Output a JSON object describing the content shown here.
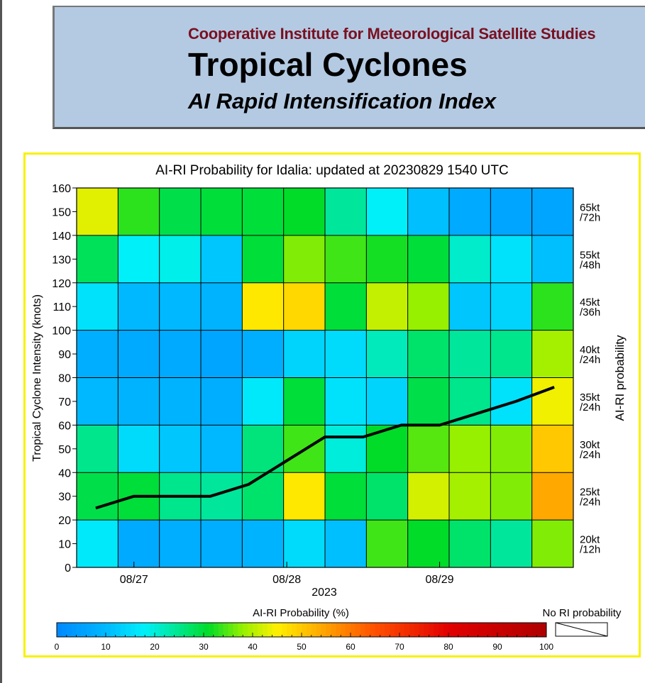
{
  "header": {
    "institute": "Cooperative Institute for Meteorological Satellite Studies",
    "title": "Tropical Cyclones",
    "subtitle": "AI Rapid Intensification Index"
  },
  "chart_data": {
    "type": "heatmap",
    "title": "AI-RI Probability for Idalia: updated at 20230829 1540 UTC",
    "ylabel": "Tropical Cyclone Intensity (knots)",
    "y2label": "AI-RI probability",
    "xlabel": "2023",
    "ylim": [
      0,
      160
    ],
    "yticks": [
      "0",
      "10",
      "20",
      "30",
      "40",
      "50",
      "60",
      "70",
      "80",
      "90",
      "100",
      "110",
      "120",
      "130",
      "140",
      "150",
      "160"
    ],
    "xtick_labels": [
      "08/27",
      "08/28",
      "08/29"
    ],
    "row_labels": [
      [
        "20kt",
        "/12h"
      ],
      [
        "25kt",
        "/24h"
      ],
      [
        "30kt",
        "/24h"
      ],
      [
        "35kt",
        "/24h"
      ],
      [
        "40kt",
        "/24h"
      ],
      [
        "45kt",
        "/36h"
      ],
      [
        "55kt",
        "/48h"
      ],
      [
        "65kt",
        "/72h"
      ]
    ],
    "row_label_note": "rows from bottom (intensity 0-20) to top (140-160)",
    "probabilities_percent": [
      [
        17,
        7,
        8,
        8,
        9,
        15,
        11,
        34,
        31,
        27,
        24,
        37
      ],
      [
        29,
        30,
        25,
        24,
        27,
        46,
        30,
        27,
        42,
        39,
        37,
        54
      ],
      [
        25,
        15,
        12,
        10,
        26,
        34,
        20,
        31,
        35,
        38,
        37,
        50
      ],
      [
        10,
        9,
        9,
        8,
        17,
        30,
        16,
        14,
        29,
        25,
        16,
        44
      ],
      [
        8,
        7,
        7,
        6,
        8,
        14,
        15,
        22,
        27,
        24,
        25,
        39
      ],
      [
        16,
        10,
        10,
        9,
        46,
        48,
        30,
        41,
        38,
        12,
        14,
        33
      ],
      [
        28,
        18,
        19,
        12,
        30,
        37,
        34,
        32,
        30,
        21,
        16,
        11
      ],
      [
        43,
        33,
        29,
        30,
        30,
        31,
        24,
        18,
        11,
        7,
        6,
        6
      ]
    ],
    "intensity_track": {
      "x": [
        "08/26 18Z",
        "08/27 00Z",
        "08/27 06Z",
        "08/27 12Z",
        "08/27 18Z",
        "08/28 00Z",
        "08/28 06Z",
        "08/28 12Z",
        "08/28 18Z",
        "08/29 00Z",
        "08/29 06Z",
        "08/29 12Z",
        "08/29 18Z"
      ],
      "y": [
        25,
        30,
        30,
        30,
        35,
        45,
        55,
        55,
        60,
        60,
        65,
        70,
        76
      ]
    },
    "colorbar": {
      "label": "AI-RI Probability (%)",
      "ticks": [
        "0",
        "10",
        "20",
        "30",
        "40",
        "50",
        "60",
        "70",
        "80",
        "90",
        "100"
      ]
    },
    "no_ri_label": "No RI probability"
  }
}
